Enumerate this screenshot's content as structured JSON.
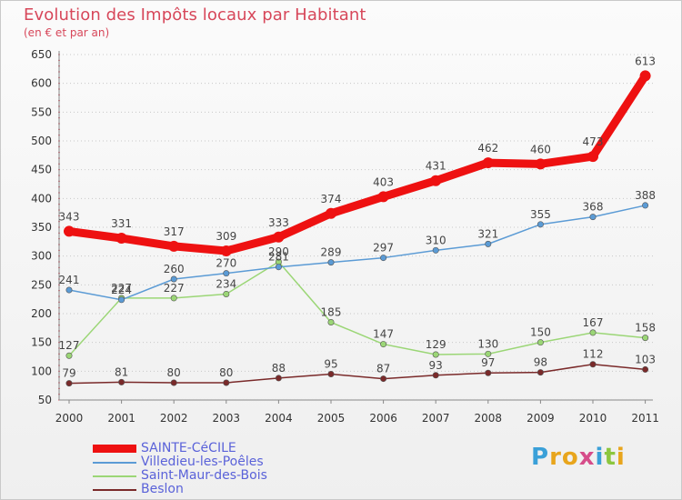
{
  "header": {
    "title": "Evolution des Impôts locaux par Habitant",
    "subtitle": "(en € et par an)"
  },
  "logo": {
    "text": "Proxiti"
  },
  "chart_data": {
    "type": "line",
    "title": "Evolution des Impôts locaux par Habitant",
    "subtitle": "(en € et par an)",
    "x": [
      "2000",
      "2001",
      "2002",
      "2003",
      "2004",
      "2005",
      "2006",
      "2007",
      "2008",
      "2009",
      "2010",
      "2011"
    ],
    "ylim": [
      50,
      650
    ],
    "yticks": [
      50,
      100,
      150,
      200,
      250,
      300,
      350,
      400,
      450,
      500,
      550,
      600,
      650
    ],
    "grid": "horizontal dotted",
    "legend_position": "bottom-left",
    "series": [
      {
        "name": "SAINTE-CéCILE",
        "color": "#ee1111",
        "values": [
          343,
          331,
          317,
          309,
          333,
          374,
          403,
          431,
          462,
          460,
          473,
          613
        ]
      },
      {
        "name": "Villedieu-les-Poêles",
        "color": "#5b9bd5",
        "values": [
          241,
          224,
          260,
          270,
          281,
          289,
          297,
          310,
          321,
          355,
          368,
          388
        ]
      },
      {
        "name": "Saint-Maur-des-Bois",
        "color": "#9bd676",
        "values": [
          127,
          227,
          227,
          234,
          290,
          185,
          147,
          129,
          130,
          150,
          167,
          158
        ]
      },
      {
        "name": "Beslon",
        "color": "#7a2a2a",
        "values": [
          79,
          81,
          80,
          80,
          88,
          95,
          87,
          93,
          97,
          98,
          112,
          103
        ]
      }
    ]
  }
}
